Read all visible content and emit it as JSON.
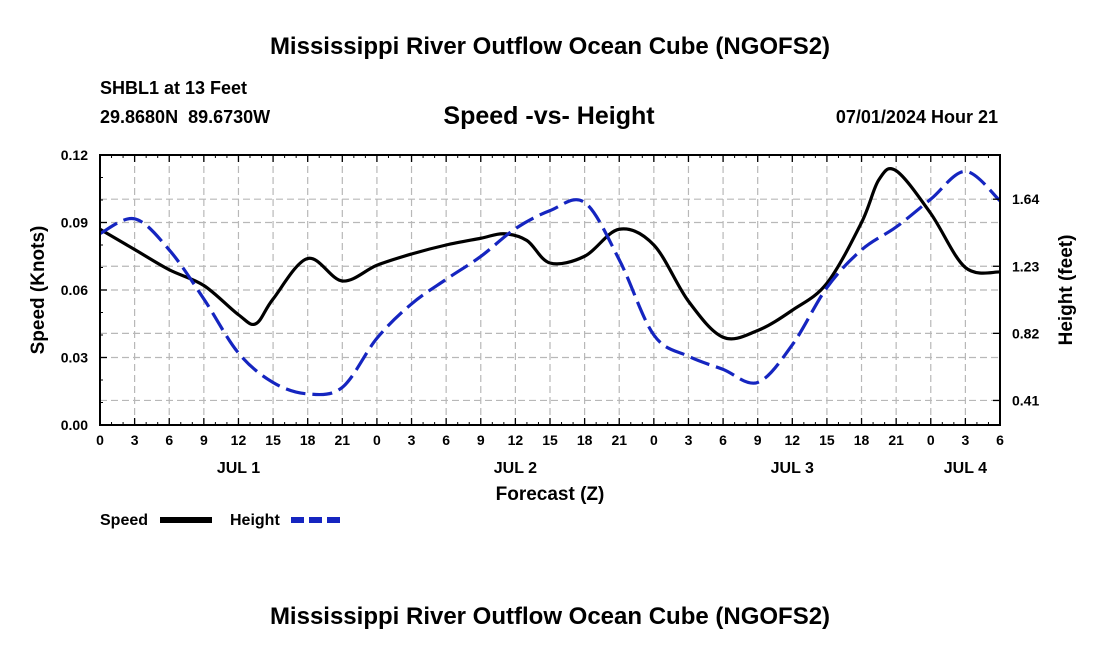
{
  "title": "Mississippi River Outflow Ocean Cube (NGOFS2)",
  "footer_title": "Mississippi River Outflow Ocean Cube (NGOFS2)",
  "station": {
    "name": "SHBL1 at 13 Feet",
    "coords": "29.8680N  89.6730W"
  },
  "date_label": "07/01/2024 Hour 21",
  "chart_data": {
    "type": "line",
    "title": "Speed -vs- Height",
    "xlabel": "Forecast (Z)",
    "ylabel_left": "Speed (Knots)",
    "ylabel_right": "Height (feet)",
    "x_unit": "forecast hours from 07/01 00Z",
    "xlim": [
      0,
      78
    ],
    "ylim_left": [
      0,
      0.12
    ],
    "ylim_right": [
      0.26,
      1.91
    ],
    "x_tick_labels": [
      "0",
      "3",
      "6",
      "9",
      "12",
      "15",
      "18",
      "21",
      "0",
      "3",
      "6",
      "9",
      "12",
      "15",
      "18",
      "21",
      "0",
      "3",
      "6",
      "9",
      "12",
      "15",
      "18",
      "21",
      "0",
      "3",
      "6"
    ],
    "x_tick_hours": [
      0,
      3,
      6,
      9,
      12,
      15,
      18,
      21,
      24,
      27,
      30,
      33,
      36,
      39,
      42,
      45,
      48,
      51,
      54,
      57,
      60,
      63,
      66,
      69,
      72,
      75,
      78
    ],
    "left_ticks": [
      "0.00",
      "0.03",
      "0.06",
      "0.09",
      "0.12"
    ],
    "left_tick_values": [
      0,
      0.03,
      0.06,
      0.09,
      0.12
    ],
    "right_ticks": [
      "0.41",
      "0.82",
      "1.23",
      "1.64"
    ],
    "right_tick_values": [
      0.41,
      0.82,
      1.23,
      1.64
    ],
    "day_labels": [
      {
        "label": "JUL 1",
        "hour": 12
      },
      {
        "label": "JUL 2",
        "hour": 36
      },
      {
        "label": "JUL 3",
        "hour": 60
      },
      {
        "label": "JUL 4",
        "hour": 75
      }
    ],
    "series": [
      {
        "name": "Speed",
        "axis": "left",
        "color": "#000000",
        "dash": "solid",
        "x": [
          0,
          3,
          6,
          9,
          12,
          13.5,
          15,
          18,
          21,
          24,
          27,
          30,
          33,
          35,
          37,
          39,
          42,
          45,
          48,
          51,
          54,
          57,
          60,
          63,
          66,
          67.5,
          69,
          72,
          75,
          78
        ],
        "values": [
          0.087,
          0.078,
          0.069,
          0.062,
          0.049,
          0.045,
          0.056,
          0.074,
          0.064,
          0.071,
          0.076,
          0.08,
          0.083,
          0.085,
          0.082,
          0.072,
          0.075,
          0.087,
          0.08,
          0.055,
          0.039,
          0.042,
          0.051,
          0.063,
          0.09,
          0.109,
          0.113,
          0.094,
          0.07,
          0.068
        ]
      },
      {
        "name": "Height",
        "axis": "right",
        "color": "#1525c0",
        "dash": "dashed",
        "x": [
          0,
          3,
          6,
          9,
          12,
          15,
          18,
          21,
          24,
          27,
          30,
          33,
          36,
          39,
          42,
          45,
          48,
          51,
          54,
          57,
          60,
          63,
          66,
          69,
          72,
          75,
          78
        ],
        "values": [
          1.43,
          1.52,
          1.33,
          1.03,
          0.7,
          0.52,
          0.45,
          0.49,
          0.79,
          1.0,
          1.15,
          1.29,
          1.46,
          1.57,
          1.62,
          1.27,
          0.81,
          0.68,
          0.6,
          0.52,
          0.75,
          1.1,
          1.33,
          1.47,
          1.64,
          1.81,
          1.63
        ]
      }
    ],
    "legend": [
      "Speed",
      "Height"
    ]
  }
}
